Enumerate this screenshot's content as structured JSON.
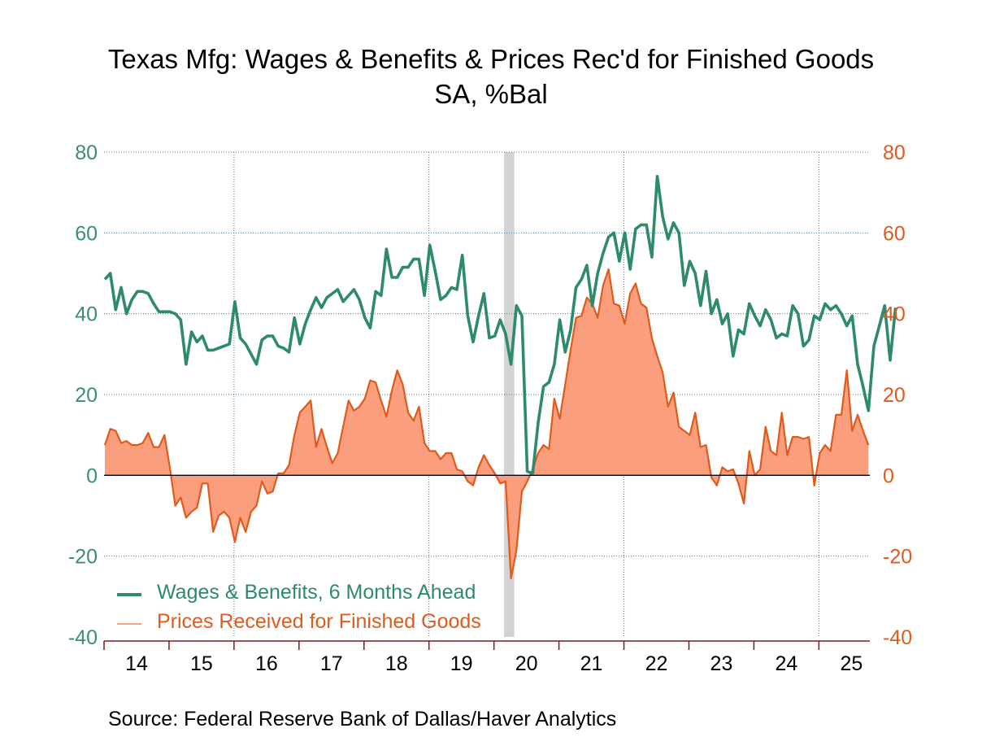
{
  "chart_data": {
    "type": "line",
    "title": "Texas Mfg: Wages & Benefits & Prices Rec'd for Finished Goods",
    "subtitle": "SA, %Bal",
    "xlabel": "",
    "ylabel_left": "",
    "ylabel_right": "",
    "ylim": [
      -40,
      80
    ],
    "yticks": [
      80,
      60,
      40,
      20,
      0,
      -20,
      -40
    ],
    "xticks": [
      "14",
      "15",
      "16",
      "17",
      "18",
      "19",
      "20",
      "21",
      "22",
      "23",
      "24",
      "25"
    ],
    "x_start": "2014-01",
    "frequency": "monthly",
    "grid": true,
    "legend_position": "bottom-left",
    "recession_shading": {
      "start": "2020-03",
      "end": "2020-04"
    },
    "series": [
      {
        "name": "Wages & Benefits, 6 Months Ahead",
        "axis": "left",
        "style": "line",
        "color": "#2e8b6a",
        "values": [
          48.5,
          50,
          41,
          46.5,
          40,
          43.5,
          45.5,
          45.5,
          45,
          42.5,
          40.5,
          40.5,
          40.5,
          40,
          38.5,
          27.5,
          35.5,
          33,
          34.5,
          31,
          31,
          31.5,
          32,
          32.5,
          43,
          34,
          32.5,
          30,
          27.5,
          33.5,
          34.5,
          34.5,
          32,
          31.5,
          30.5,
          39,
          32.5,
          37.5,
          41,
          44,
          41.5,
          44,
          45,
          46,
          43,
          44.5,
          46,
          43.5,
          39,
          36.5,
          45.5,
          44.5,
          56,
          49,
          49,
          51.5,
          51.5,
          53.5,
          53.5,
          44.5,
          57,
          50.5,
          43.5,
          44.5,
          46.5,
          46,
          54.5,
          39.5,
          33,
          39.5,
          45,
          34,
          34.5,
          38.5,
          35,
          27.5,
          42,
          39.5,
          1,
          0.5,
          13,
          22,
          23,
          27.5,
          38.5,
          30.5,
          36,
          46.5,
          48.5,
          52,
          42,
          50,
          55,
          59,
          60,
          53,
          60,
          51,
          61,
          62,
          62,
          54,
          74,
          64,
          58.5,
          62.5,
          60,
          47,
          53,
          50,
          42,
          50.5,
          40,
          43.5,
          37.5,
          40,
          29.5,
          36,
          35,
          42.5,
          39.5,
          37,
          41,
          38.5,
          34,
          35,
          34.5,
          42,
          40,
          32,
          33.5,
          39.5,
          38.5,
          42.5,
          41,
          42,
          40,
          37,
          39.5,
          27.5,
          22,
          16,
          32,
          37,
          42,
          28.5,
          41.5
        ]
      },
      {
        "name": "Prices Received for Finished Goods",
        "axis": "right",
        "style": "area",
        "color": "#e05a1c",
        "fill": "#fa9e7e",
        "values": [
          7.5,
          11.5,
          11,
          8,
          8.5,
          7.5,
          7.5,
          8,
          10.5,
          7,
          7,
          10,
          2,
          -7.5,
          -5.5,
          -10.5,
          -9,
          -8,
          -2,
          -2,
          -14,
          -10,
          -9,
          -10.5,
          -16.5,
          -10.5,
          -14,
          -9,
          -7.5,
          -1.5,
          -4.5,
          -4,
          0.5,
          0.5,
          2.5,
          10,
          15.5,
          17,
          18.5,
          7,
          11.5,
          7,
          3,
          5.5,
          12,
          18.5,
          16,
          17,
          19,
          23.5,
          23,
          18.5,
          14.5,
          21,
          26,
          22.5,
          15.5,
          13.5,
          17,
          8,
          6,
          6,
          4,
          5.5,
          5.5,
          1.5,
          1,
          -1.5,
          -2.5,
          2,
          5,
          2.5,
          0.5,
          -2,
          -1.5,
          -25.5,
          -18.5,
          -4,
          -1.5,
          1.5,
          5.5,
          7.5,
          6.5,
          19,
          14,
          22.5,
          31,
          39,
          39.5,
          44,
          42.5,
          39,
          47,
          51,
          42.5,
          42,
          37.5,
          45,
          47.5,
          42.5,
          41.5,
          34,
          29.5,
          25.5,
          17,
          20.5,
          12,
          11,
          10,
          15.5,
          7,
          7.5,
          -0.5,
          -2.5,
          2,
          1,
          1.5,
          -2,
          -7,
          6,
          0,
          1.5,
          12,
          6,
          5,
          15.5,
          5,
          9.5,
          9.5,
          9,
          9.5,
          -2.5,
          5.5,
          7.5,
          6,
          15,
          15,
          26,
          11,
          15,
          11,
          7.5
        ]
      }
    ]
  },
  "legend": [
    {
      "label": "Wages & Benefits, 6 Months Ahead",
      "color": "#2e8b6a",
      "swatch": "#2e8b6a"
    },
    {
      "label": "Prices Received for Finished Goods",
      "color": "#e05a1c",
      "swatch": "#f4a383"
    }
  ],
  "source": "Source:  Federal Reserve Bank of Dallas/Haver Analytics",
  "colors": {
    "left_axis": "#3a8f72",
    "right_axis": "#e05a1c",
    "grid": "#3a7ea8",
    "axis_line": "#7a1a1a",
    "recession": "#d3d3d3"
  }
}
